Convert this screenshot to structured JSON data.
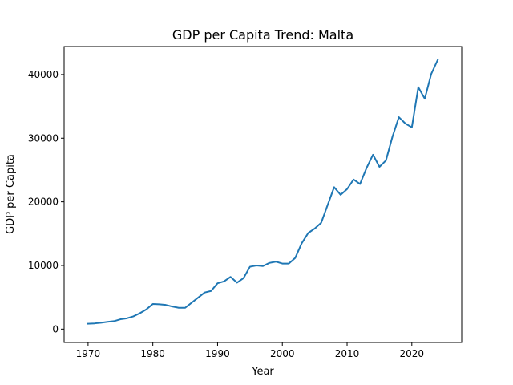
{
  "chart_data": {
    "type": "line",
    "title": "GDP per Capita Trend: Malta",
    "xlabel": "Year",
    "ylabel": "GDP per Capita",
    "xlim": [
      1966.3,
      2027.7
    ],
    "ylim": [
      -2100,
      44400
    ],
    "x_ticks": [
      1970,
      1980,
      1990,
      2000,
      2010,
      2020
    ],
    "y_ticks": [
      0,
      10000,
      20000,
      30000,
      40000
    ],
    "grid": false,
    "legend": "none",
    "line_color": "#1f77b4",
    "series": [
      {
        "x": [
          1970,
          1971,
          1972,
          1973,
          1974,
          1975,
          1976,
          1977,
          1978,
          1979,
          1980,
          1981,
          1982,
          1983,
          1984,
          1985,
          1986,
          1987,
          1988,
          1989,
          1990,
          1991,
          1992,
          1993,
          1994,
          1995,
          1996,
          1997,
          1998,
          1999,
          2000,
          2001,
          2002,
          2003,
          2004,
          2005,
          2006,
          2007,
          2008,
          2009,
          2010,
          2011,
          2012,
          2013,
          2014,
          2015,
          2016,
          2017,
          2018,
          2019,
          2020,
          2021,
          2022,
          2023,
          2024
        ],
        "values": [
          850,
          900,
          1000,
          1150,
          1250,
          1550,
          1700,
          2000,
          2500,
          3100,
          3950,
          3900,
          3800,
          3550,
          3350,
          3350,
          4150,
          4950,
          5750,
          6000,
          7200,
          7500,
          8200,
          7300,
          8000,
          9800,
          10000,
          9900,
          10400,
          10600,
          10300,
          10300,
          11200,
          13500,
          15100,
          15800,
          16700,
          19500,
          22300,
          21100,
          22000,
          23500,
          22800,
          25300,
          27400,
          25500,
          26500,
          30200,
          33300,
          32300,
          31700,
          38000,
          36200,
          40100,
          42300
        ]
      }
    ]
  }
}
